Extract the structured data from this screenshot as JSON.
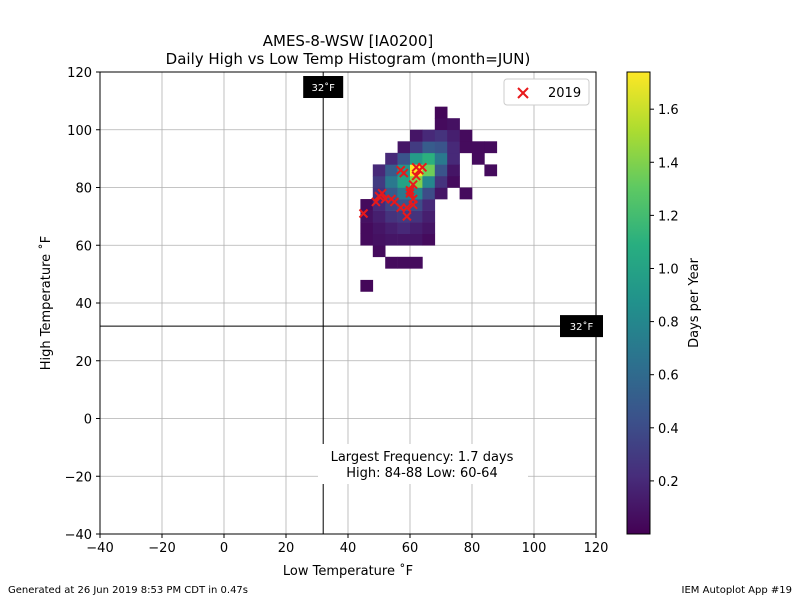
{
  "chart_data": {
    "type": "heatmap",
    "title": "AMES-8-WSW [IA0200]",
    "subtitle": "Daily High vs Low Temp Histogram (month=JUN)",
    "xlabel": "Low Temperature ˚F",
    "ylabel": "High Temperature ˚F",
    "xlim": [
      -40,
      120
    ],
    "ylim": [
      -40,
      120
    ],
    "xticks": [
      -40,
      -20,
      0,
      20,
      40,
      60,
      80,
      100,
      120
    ],
    "yticks": [
      -40,
      -20,
      0,
      20,
      40,
      60,
      80,
      100,
      120
    ],
    "grid": true,
    "bin_size": 4,
    "colorbar": {
      "label": "Days per Year",
      "min": 0.0,
      "max": 1.74,
      "ticks": [
        0.2,
        0.4,
        0.6,
        0.8,
        1.0,
        1.2,
        1.4,
        1.6
      ],
      "colormap": "viridis"
    },
    "freezing_lines": {
      "value": 32,
      "label": "32˚F"
    },
    "annotation": [
      "Largest Frequency: 1.7 days",
      "High: 84-88 Low: 60-64"
    ],
    "legend": {
      "position": "top-right",
      "entries": [
        {
          "name": "2019",
          "marker": "x",
          "color": "#e8191b"
        }
      ]
    },
    "series": [
      {
        "name": "2019",
        "points": [
          [
            45,
            71
          ],
          [
            49,
            75
          ],
          [
            50,
            77
          ],
          [
            51,
            78
          ],
          [
            52,
            76
          ],
          [
            54,
            76
          ],
          [
            55,
            75
          ],
          [
            57,
            73
          ],
          [
            57,
            86
          ],
          [
            58,
            85
          ],
          [
            59,
            73
          ],
          [
            59,
            70
          ],
          [
            60,
            79
          ],
          [
            60,
            78
          ],
          [
            61,
            81
          ],
          [
            61,
            74
          ],
          [
            61,
            76
          ],
          [
            62,
            87
          ],
          [
            62,
            84
          ],
          [
            63,
            86
          ],
          [
            64,
            87
          ]
        ]
      }
    ],
    "bins": [
      [
        44,
        44,
        0.03
      ],
      [
        52,
        52,
        0.05
      ],
      [
        56,
        52,
        0.05
      ],
      [
        60,
        52,
        0.05
      ],
      [
        48,
        56,
        0.05
      ],
      [
        44,
        60,
        0.05
      ],
      [
        48,
        60,
        0.08
      ],
      [
        52,
        60,
        0.1
      ],
      [
        56,
        60,
        0.1
      ],
      [
        60,
        60,
        0.1
      ],
      [
        64,
        60,
        0.05
      ],
      [
        44,
        64,
        0.05
      ],
      [
        48,
        64,
        0.1
      ],
      [
        52,
        64,
        0.15
      ],
      [
        56,
        64,
        0.2
      ],
      [
        60,
        64,
        0.15
      ],
      [
        64,
        64,
        0.1
      ],
      [
        44,
        68,
        0.08
      ],
      [
        48,
        68,
        0.15
      ],
      [
        52,
        68,
        0.25
      ],
      [
        56,
        68,
        0.3
      ],
      [
        60,
        68,
        0.25
      ],
      [
        64,
        68,
        0.15
      ],
      [
        44,
        72,
        0.05
      ],
      [
        48,
        72,
        0.2
      ],
      [
        52,
        72,
        0.35
      ],
      [
        56,
        72,
        0.45
      ],
      [
        60,
        72,
        0.4
      ],
      [
        64,
        72,
        0.2
      ],
      [
        48,
        76,
        0.25
      ],
      [
        52,
        76,
        0.5
      ],
      [
        56,
        76,
        0.7
      ],
      [
        60,
        76,
        0.8
      ],
      [
        64,
        76,
        0.4
      ],
      [
        68,
        76,
        0.1
      ],
      [
        48,
        80,
        0.3
      ],
      [
        52,
        80,
        0.7
      ],
      [
        56,
        80,
        1.0
      ],
      [
        60,
        80,
        1.4
      ],
      [
        64,
        80,
        0.8
      ],
      [
        68,
        80,
        0.25
      ],
      [
        72,
        80,
        0.05
      ],
      [
        48,
        84,
        0.2
      ],
      [
        52,
        84,
        0.5
      ],
      [
        56,
        84,
        0.9
      ],
      [
        60,
        84,
        1.74
      ],
      [
        64,
        84,
        1.35
      ],
      [
        68,
        84,
        0.45
      ],
      [
        72,
        84,
        0.1
      ],
      [
        52,
        88,
        0.2
      ],
      [
        56,
        88,
        0.45
      ],
      [
        60,
        88,
        0.95
      ],
      [
        64,
        88,
        1.1
      ],
      [
        68,
        88,
        0.7
      ],
      [
        72,
        88,
        0.2
      ],
      [
        56,
        92,
        0.1
      ],
      [
        60,
        92,
        0.3
      ],
      [
        64,
        92,
        0.5
      ],
      [
        68,
        92,
        0.45
      ],
      [
        72,
        92,
        0.2
      ],
      [
        76,
        92,
        0.05
      ],
      [
        60,
        96,
        0.1
      ],
      [
        64,
        96,
        0.2
      ],
      [
        68,
        96,
        0.25
      ],
      [
        72,
        96,
        0.15
      ],
      [
        76,
        96,
        0.05
      ],
      [
        68,
        100,
        0.05
      ],
      [
        72,
        100,
        0.08
      ],
      [
        68,
        104,
        0.03
      ],
      [
        76,
        76,
        0.05
      ],
      [
        84,
        84,
        0.05
      ],
      [
        84,
        92,
        0.05
      ],
      [
        80,
        88,
        0.05
      ],
      [
        80,
        92,
        0.05
      ]
    ]
  },
  "footer": {
    "left": "Generated at 26 Jun 2019 8:53 PM CDT in 0.47s",
    "right": "IEM Autoplot App #19"
  }
}
